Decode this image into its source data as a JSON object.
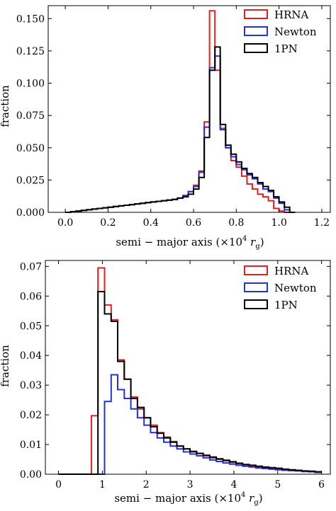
{
  "colors": {
    "HRNA": "#e0211f",
    "Newton": "#2530d8",
    "1PN": "#000000"
  },
  "chart_data": [
    {
      "type": "histogram-step",
      "xlabel": "semi − major axis (×10⁴ r_g)",
      "xlabel_parts": {
        "main": "semi − major axis (×10",
        "exp": "4",
        "r": " r",
        "sub": "g",
        "close": ")"
      },
      "ylabel": "fraction",
      "xlim": [
        -0.08,
        1.24
      ],
      "ylim": [
        0,
        0.16
      ],
      "xticks": [
        0.0,
        0.2,
        0.4,
        0.6,
        0.8,
        1.0,
        1.2
      ],
      "xtick_labels": [
        "0.0",
        "0.2",
        "0.4",
        "0.6",
        "0.8",
        "1.0",
        "1.2"
      ],
      "yticks": [
        0.0,
        0.025,
        0.05,
        0.075,
        0.1,
        0.125,
        0.15
      ],
      "ytick_labels": [
        "0.000",
        "0.025",
        "0.050",
        "0.075",
        "0.100",
        "0.125",
        "0.150"
      ],
      "legend_position": "top-right",
      "bin_start": 0.0,
      "bin_width": 0.025,
      "series": [
        {
          "name": "HRNA",
          "values": [
            0,
            0.0005,
            0.001,
            0.0015,
            0.002,
            0.0025,
            0.003,
            0.0035,
            0.004,
            0.0045,
            0.005,
            0.0055,
            0.006,
            0.0065,
            0.007,
            0.0075,
            0.008,
            0.0085,
            0.009,
            0.0095,
            0.01,
            0.011,
            0.013,
            0.016,
            0.021,
            0.032,
            0.07,
            0.156,
            0.11,
            0.065,
            0.05,
            0.04,
            0.035,
            0.028,
            0.022,
            0.018,
            0.014,
            0.012,
            0.009,
            0.003,
            0.001,
            0,
            0
          ]
        },
        {
          "name": "Newton",
          "values": [
            0,
            0.0005,
            0.001,
            0.0015,
            0.002,
            0.0025,
            0.003,
            0.0035,
            0.004,
            0.0045,
            0.005,
            0.0055,
            0.006,
            0.0065,
            0.007,
            0.0075,
            0.008,
            0.0085,
            0.009,
            0.0095,
            0.01,
            0.011,
            0.013,
            0.016,
            0.02,
            0.031,
            0.066,
            0.112,
            0.121,
            0.064,
            0.05,
            0.043,
            0.037,
            0.033,
            0.029,
            0.026,
            0.022,
            0.018,
            0.016,
            0.011,
            0.007,
            0.002,
            0
          ]
        },
        {
          "name": "1PN",
          "values": [
            0,
            0.0005,
            0.001,
            0.0015,
            0.002,
            0.0025,
            0.003,
            0.0035,
            0.004,
            0.0045,
            0.005,
            0.0055,
            0.006,
            0.0065,
            0.007,
            0.0075,
            0.008,
            0.0085,
            0.009,
            0.0095,
            0.01,
            0.011,
            0.012,
            0.014,
            0.018,
            0.027,
            0.058,
            0.11,
            0.128,
            0.068,
            0.052,
            0.045,
            0.039,
            0.034,
            0.03,
            0.027,
            0.023,
            0.02,
            0.017,
            0.012,
            0.008,
            0.004,
            0
          ]
        }
      ]
    },
    {
      "type": "histogram-step",
      "xlabel": "semi − major axis (×10⁴ r_g)",
      "xlabel_parts": {
        "main": "semi − major axis (×10",
        "exp": "4",
        "r": " r",
        "sub": "g",
        "close": ")"
      },
      "ylabel": "fraction",
      "xlim": [
        -0.3,
        6.2
      ],
      "ylim": [
        0,
        0.072
      ],
      "xticks": [
        0,
        1,
        2,
        3,
        4,
        5,
        6
      ],
      "xtick_labels": [
        "0",
        "1",
        "2",
        "3",
        "4",
        "5",
        "6"
      ],
      "yticks": [
        0.0,
        0.01,
        0.02,
        0.03,
        0.04,
        0.05,
        0.06,
        0.07
      ],
      "ytick_labels": [
        "0.00",
        "0.01",
        "0.02",
        "0.03",
        "0.04",
        "0.05",
        "0.06",
        "0.07"
      ],
      "legend_position": "top-right",
      "bin_start": 0.0,
      "bin_width": 0.15,
      "series": [
        {
          "name": "HRNA",
          "values": [
            0,
            0,
            0,
            0,
            0,
            0.0197,
            0.0695,
            0.057,
            0.052,
            0.0385,
            0.032,
            0.026,
            0.022,
            0.019,
            0.0165,
            0.014,
            0.0125,
            0.011,
            0.0095,
            0.0085,
            0.0075,
            0.007,
            0.0062,
            0.0055,
            0.005,
            0.0045,
            0.004,
            0.0035,
            0.0031,
            0.0028,
            0.0025,
            0.0022,
            0.002,
            0.0018,
            0.0015,
            0.0013,
            0.0012,
            0.001,
            0.0009,
            0.0008
          ]
        },
        {
          "name": "Newton",
          "values": [
            0,
            0,
            0,
            0,
            0,
            0,
            0,
            0.0245,
            0.0335,
            0.0285,
            0.0255,
            0.022,
            0.019,
            0.0165,
            0.014,
            0.0122,
            0.0108,
            0.0095,
            0.0085,
            0.0075,
            0.0068,
            0.0062,
            0.0055,
            0.0048,
            0.0043,
            0.0038,
            0.0034,
            0.003,
            0.0027,
            0.0024,
            0.0021,
            0.0019,
            0.0017,
            0.0015,
            0.0013,
            0.0012,
            0.0011,
            0.0009,
            0.0008,
            0.0006
          ]
        },
        {
          "name": "1PN",
          "values": [
            0,
            0,
            0,
            0,
            0,
            0,
            0.0615,
            0.054,
            0.0515,
            0.038,
            0.032,
            0.0255,
            0.0225,
            0.019,
            0.016,
            0.0138,
            0.0122,
            0.0108,
            0.0095,
            0.0085,
            0.0077,
            0.007,
            0.0064,
            0.0058,
            0.0052,
            0.0047,
            0.0042,
            0.0037,
            0.0033,
            0.003,
            0.0027,
            0.0024,
            0.0022,
            0.002,
            0.0017,
            0.0015,
            0.0013,
            0.0011,
            0.001,
            0.0008
          ]
        }
      ]
    }
  ]
}
